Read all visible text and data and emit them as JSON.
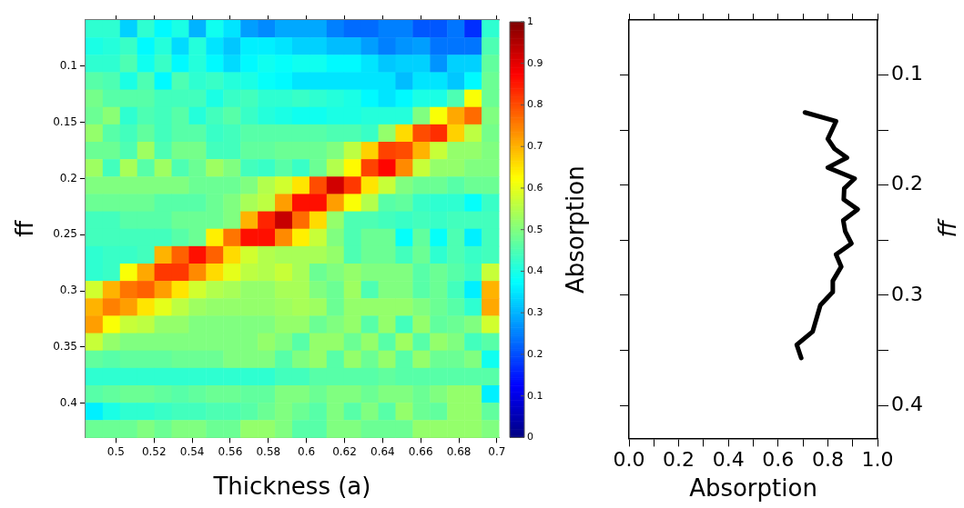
{
  "chart_data": [
    {
      "type": "heatmap",
      "xlabel": "Thickness (a)",
      "ylabel": "ff",
      "clabel": "Absorption",
      "xlim": [
        0.484,
        0.701
      ],
      "xticks": [
        0.5,
        0.52,
        0.54,
        0.56,
        0.58,
        0.6,
        0.62,
        0.64,
        0.66,
        0.68,
        0.7
      ],
      "ylim": [
        0.4305,
        0.0588
      ],
      "yticks": [
        0.1,
        0.15,
        0.2,
        0.25,
        0.3,
        0.35,
        0.4
      ],
      "clim": [
        0,
        1
      ],
      "cticks": [
        0,
        0.1,
        0.2,
        0.3,
        0.4,
        0.5,
        0.6,
        0.7,
        0.8,
        0.9,
        1
      ],
      "cells": [
        [
          0.42,
          0.42,
          0.33,
          0.42,
          0.37,
          0.4,
          0.3,
          0.39,
          0.35,
          0.28,
          0.26,
          0.29,
          0.29,
          0.29,
          0.25,
          0.23,
          0.23,
          0.25,
          0.25,
          0.21,
          0.21,
          0.24,
          0.17,
          0.42
        ],
        [
          0.4,
          0.41,
          0.43,
          0.37,
          0.41,
          0.34,
          0.41,
          0.35,
          0.32,
          0.36,
          0.36,
          0.35,
          0.33,
          0.33,
          0.31,
          0.31,
          0.28,
          0.25,
          0.27,
          0.28,
          0.24,
          0.24,
          0.24,
          0.45
        ],
        [
          0.42,
          0.42,
          0.45,
          0.39,
          0.43,
          0.37,
          0.41,
          0.37,
          0.34,
          0.37,
          0.39,
          0.38,
          0.39,
          0.39,
          0.37,
          0.37,
          0.35,
          0.32,
          0.33,
          0.33,
          0.27,
          0.33,
          0.33,
          0.47
        ],
        [
          0.46,
          0.45,
          0.4,
          0.45,
          0.37,
          0.45,
          0.42,
          0.43,
          0.41,
          0.4,
          0.38,
          0.37,
          0.35,
          0.35,
          0.35,
          0.35,
          0.35,
          0.35,
          0.31,
          0.35,
          0.35,
          0.32,
          0.37,
          0.48
        ],
        [
          0.49,
          0.46,
          0.46,
          0.46,
          0.44,
          0.44,
          0.44,
          0.4,
          0.43,
          0.44,
          0.42,
          0.42,
          0.43,
          0.42,
          0.41,
          0.4,
          0.37,
          0.35,
          0.37,
          0.4,
          0.4,
          0.45,
          0.62,
          0.48
        ],
        [
          0.48,
          0.51,
          0.42,
          0.45,
          0.44,
          0.46,
          0.41,
          0.44,
          0.46,
          0.43,
          0.41,
          0.4,
          0.39,
          0.39,
          0.4,
          0.4,
          0.41,
          0.41,
          0.41,
          0.5,
          0.62,
          0.71,
          0.77,
          0.5
        ],
        [
          0.52,
          0.46,
          0.44,
          0.47,
          0.44,
          0.46,
          0.46,
          0.43,
          0.44,
          0.46,
          0.46,
          0.46,
          0.46,
          0.46,
          0.45,
          0.45,
          0.43,
          0.52,
          0.66,
          0.8,
          0.83,
          0.67,
          0.56,
          0.49
        ],
        [
          0.48,
          0.48,
          0.45,
          0.53,
          0.45,
          0.49,
          0.49,
          0.44,
          0.44,
          0.47,
          0.47,
          0.48,
          0.48,
          0.48,
          0.5,
          0.56,
          0.67,
          0.81,
          0.8,
          0.7,
          0.57,
          0.52,
          0.52,
          0.5
        ],
        [
          0.53,
          0.44,
          0.54,
          0.46,
          0.53,
          0.45,
          0.48,
          0.53,
          0.5,
          0.44,
          0.43,
          0.46,
          0.43,
          0.48,
          0.55,
          0.63,
          0.81,
          0.87,
          0.74,
          0.57,
          0.52,
          0.52,
          0.5,
          0.5
        ],
        [
          0.5,
          0.5,
          0.5,
          0.5,
          0.5,
          0.5,
          0.48,
          0.48,
          0.48,
          0.5,
          0.55,
          0.58,
          0.65,
          0.8,
          0.92,
          0.82,
          0.65,
          0.57,
          0.5,
          0.48,
          0.48,
          0.46,
          0.48,
          0.48
        ],
        [
          0.48,
          0.48,
          0.48,
          0.48,
          0.46,
          0.46,
          0.46,
          0.48,
          0.5,
          0.54,
          0.56,
          0.72,
          0.86,
          0.86,
          0.72,
          0.62,
          0.55,
          0.46,
          0.47,
          0.43,
          0.42,
          0.42,
          0.38,
          0.43
        ],
        [
          0.44,
          0.44,
          0.46,
          0.46,
          0.46,
          0.48,
          0.48,
          0.48,
          0.5,
          0.7,
          0.84,
          0.93,
          0.77,
          0.66,
          0.52,
          0.45,
          0.45,
          0.44,
          0.43,
          0.44,
          0.43,
          0.44,
          0.44,
          0.44
        ],
        [
          0.44,
          0.44,
          0.44,
          0.44,
          0.44,
          0.46,
          0.48,
          0.64,
          0.76,
          0.86,
          0.86,
          0.74,
          0.64,
          0.57,
          0.5,
          0.45,
          0.48,
          0.48,
          0.38,
          0.47,
          0.38,
          0.45,
          0.36,
          0.44
        ],
        [
          0.42,
          0.43,
          0.43,
          0.44,
          0.7,
          0.78,
          0.86,
          0.78,
          0.66,
          0.58,
          0.55,
          0.54,
          0.54,
          0.54,
          0.52,
          0.45,
          0.48,
          0.48,
          0.44,
          0.48,
          0.42,
          0.45,
          0.43,
          0.44
        ],
        [
          0.42,
          0.43,
          0.62,
          0.71,
          0.82,
          0.82,
          0.74,
          0.66,
          0.6,
          0.56,
          0.55,
          0.57,
          0.54,
          0.48,
          0.5,
          0.52,
          0.5,
          0.5,
          0.5,
          0.46,
          0.48,
          0.46,
          0.44,
          0.57
        ],
        [
          0.58,
          0.7,
          0.76,
          0.78,
          0.72,
          0.65,
          0.58,
          0.55,
          0.54,
          0.52,
          0.52,
          0.54,
          0.54,
          0.5,
          0.48,
          0.53,
          0.45,
          0.5,
          0.5,
          0.46,
          0.48,
          0.44,
          0.36,
          0.7
        ],
        [
          0.7,
          0.75,
          0.72,
          0.65,
          0.6,
          0.56,
          0.53,
          0.52,
          0.52,
          0.52,
          0.52,
          0.53,
          0.54,
          0.53,
          0.48,
          0.52,
          0.52,
          0.52,
          0.52,
          0.5,
          0.48,
          0.46,
          0.42,
          0.71
        ],
        [
          0.72,
          0.62,
          0.57,
          0.56,
          0.52,
          0.52,
          0.5,
          0.5,
          0.5,
          0.5,
          0.5,
          0.52,
          0.52,
          0.48,
          0.5,
          0.52,
          0.46,
          0.52,
          0.44,
          0.52,
          0.47,
          0.48,
          0.5,
          0.58
        ],
        [
          0.57,
          0.52,
          0.5,
          0.5,
          0.5,
          0.5,
          0.5,
          0.5,
          0.5,
          0.5,
          0.52,
          0.5,
          0.46,
          0.52,
          0.52,
          0.48,
          0.52,
          0.46,
          0.53,
          0.46,
          0.52,
          0.5,
          0.44,
          0.46
        ],
        [
          0.47,
          0.46,
          0.47,
          0.47,
          0.47,
          0.48,
          0.48,
          0.48,
          0.5,
          0.5,
          0.5,
          0.46,
          0.5,
          0.52,
          0.46,
          0.52,
          0.48,
          0.52,
          0.46,
          0.52,
          0.48,
          0.48,
          0.5,
          0.39
        ],
        [
          0.42,
          0.42,
          0.42,
          0.42,
          0.42,
          0.42,
          0.42,
          0.42,
          0.42,
          0.42,
          0.42,
          0.44,
          0.44,
          0.46,
          0.46,
          0.46,
          0.46,
          0.47,
          0.46,
          0.46,
          0.46,
          0.46,
          0.46,
          0.46
        ],
        [
          0.46,
          0.47,
          0.48,
          0.48,
          0.47,
          0.46,
          0.47,
          0.48,
          0.48,
          0.47,
          0.47,
          0.5,
          0.5,
          0.48,
          0.5,
          0.5,
          0.48,
          0.5,
          0.5,
          0.48,
          0.5,
          0.52,
          0.52,
          0.36
        ],
        [
          0.36,
          0.4,
          0.42,
          0.42,
          0.43,
          0.44,
          0.44,
          0.45,
          0.45,
          0.46,
          0.48,
          0.5,
          0.48,
          0.46,
          0.5,
          0.46,
          0.5,
          0.46,
          0.52,
          0.48,
          0.47,
          0.52,
          0.52,
          0.47
        ],
        [
          0.48,
          0.48,
          0.48,
          0.5,
          0.48,
          0.5,
          0.5,
          0.48,
          0.48,
          0.52,
          0.52,
          0.5,
          0.46,
          0.46,
          0.5,
          0.5,
          0.48,
          0.48,
          0.48,
          0.52,
          0.52,
          0.52,
          0.52,
          0.5
        ]
      ]
    },
    {
      "type": "line",
      "xlabel": "Absorption",
      "ylabel": "ff",
      "marker": "none",
      "xlim": [
        0,
        1
      ],
      "xticks": [
        {
          "value": 0,
          "label": "0.0"
        },
        {
          "value": 0.1,
          "label": null
        },
        {
          "value": 0.2,
          "label": "0.2"
        },
        {
          "value": 0.3,
          "label": null
        },
        {
          "value": 0.4,
          "label": "0.4"
        },
        {
          "value": 0.5,
          "label": null
        },
        {
          "value": 0.6,
          "label": "0.6"
        },
        {
          "value": 0.7,
          "label": null
        },
        {
          "value": 0.8,
          "label": "0.8"
        },
        {
          "value": 0.9,
          "label": null
        },
        {
          "value": 1,
          "label": "1.0"
        }
      ],
      "ylim": [
        0.43,
        0.05
      ],
      "yticks": [
        0.1,
        {
          "value": 0.15,
          "label": null
        },
        0.2,
        {
          "value": 0.25,
          "label": null
        },
        0.3,
        {
          "value": 0.35,
          "label": null
        },
        0.4
      ],
      "series": [
        {
          "color": "#000000",
          "x": [
            0.708,
            0.833,
            0.8,
            0.827,
            0.877,
            0.8,
            0.908,
            0.866,
            0.864,
            0.92,
            0.862,
            0.87,
            0.895,
            0.833,
            0.854,
            0.82,
            0.82,
            0.77,
            0.739,
            0.675,
            0.693
          ],
          "values": [
            0.134,
            0.142,
            0.158,
            0.167,
            0.175,
            0.184,
            0.194,
            0.203,
            0.213,
            0.222,
            0.232,
            0.242,
            0.253,
            0.263,
            0.274,
            0.287,
            0.297,
            0.309,
            0.333,
            0.345,
            0.357
          ]
        }
      ]
    }
  ]
}
